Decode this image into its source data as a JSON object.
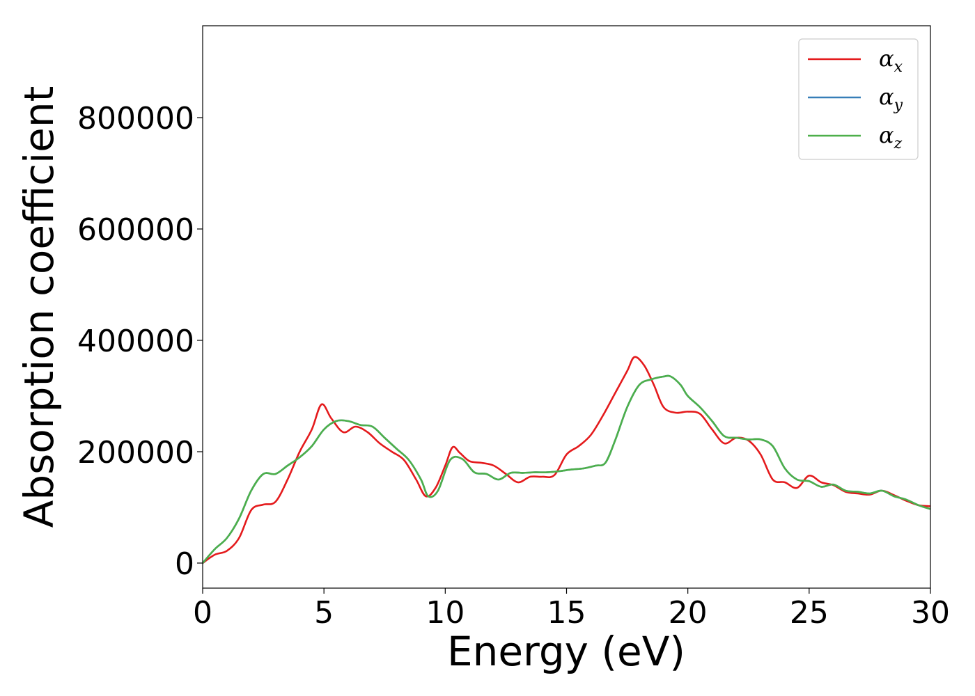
{
  "chart_data": {
    "type": "line",
    "xlabel": "Energy (eV)",
    "ylabel": "Absorption coefficient",
    "xlim": [
      0,
      30
    ],
    "ylim": [
      -45000,
      965000
    ],
    "xticks": [
      0,
      5,
      10,
      15,
      20,
      25,
      30
    ],
    "yticks": [
      0,
      200000,
      400000,
      600000,
      800000
    ],
    "xtick_labels": [
      "0",
      "5",
      "10",
      "15",
      "20",
      "25",
      "30"
    ],
    "ytick_labels": [
      "0",
      "200000",
      "400000",
      "600000",
      "800000"
    ],
    "grid": false,
    "legend_position": "top-right",
    "series": [
      {
        "name": "αx",
        "name_base": "α",
        "name_sub": "x",
        "color": "#e41a1c",
        "x": [
          0,
          0.5,
          1,
          1.5,
          2,
          2.5,
          3,
          3.5,
          4,
          4.5,
          4.9,
          5.3,
          5.8,
          6.3,
          6.8,
          7.3,
          7.8,
          8.3,
          8.8,
          9.2,
          9.6,
          10,
          10.3,
          10.6,
          11,
          11.5,
          12,
          12.5,
          13,
          13.5,
          14,
          14.5,
          15,
          15.5,
          16,
          16.5,
          17,
          17.5,
          17.8,
          18.2,
          18.6,
          19,
          19.5,
          20,
          20.5,
          21,
          21.5,
          22,
          22.5,
          23,
          23.5,
          24,
          24.5,
          25,
          25.5,
          26,
          26.5,
          27,
          27.5,
          28,
          28.5,
          29,
          29.5,
          30
        ],
        "y": [
          0,
          15000,
          22000,
          45000,
          95000,
          105000,
          110000,
          150000,
          200000,
          240000,
          285000,
          260000,
          235000,
          245000,
          235000,
          215000,
          200000,
          185000,
          150000,
          120000,
          135000,
          175000,
          208000,
          198000,
          183000,
          180000,
          175000,
          160000,
          145000,
          155000,
          155000,
          158000,
          195000,
          210000,
          230000,
          265000,
          305000,
          345000,
          370000,
          355000,
          320000,
          280000,
          270000,
          272000,
          268000,
          240000,
          215000,
          225000,
          220000,
          195000,
          150000,
          145000,
          135000,
          157000,
          145000,
          140000,
          128000,
          125000,
          123000,
          130000,
          122000,
          112000,
          104000,
          102000
        ]
      },
      {
        "name": "αy",
        "name_base": "α",
        "name_sub": "y",
        "color": "#377eb8",
        "x": [
          0,
          0.5,
          1,
          1.5,
          2,
          2.5,
          3,
          3.5,
          4,
          4.5,
          5,
          5.5,
          6,
          6.5,
          7,
          7.5,
          8,
          8.5,
          9,
          9.3,
          9.7,
          10.2,
          10.7,
          11.2,
          11.7,
          12.2,
          12.7,
          13.2,
          13.7,
          14.2,
          14.7,
          15.2,
          15.7,
          16.2,
          16.6,
          17,
          17.5,
          18,
          18.5,
          19,
          19.3,
          19.7,
          20,
          20.5,
          21,
          21.5,
          22,
          22.5,
          23,
          23.5,
          24,
          24.5,
          25,
          25.5,
          26,
          26.5,
          27,
          27.5,
          28,
          28.5,
          29,
          29.5,
          30
        ],
        "y": [
          0,
          25000,
          45000,
          80000,
          130000,
          160000,
          160000,
          175000,
          190000,
          210000,
          240000,
          255000,
          255000,
          248000,
          245000,
          225000,
          205000,
          185000,
          150000,
          120000,
          130000,
          185000,
          187000,
          163000,
          160000,
          150000,
          162000,
          162000,
          163000,
          163000,
          165000,
          168000,
          170000,
          175000,
          180000,
          220000,
          280000,
          320000,
          330000,
          335000,
          335000,
          320000,
          300000,
          280000,
          255000,
          228000,
          225000,
          222000,
          222000,
          210000,
          170000,
          150000,
          147000,
          137000,
          141000,
          130000,
          128000,
          125000,
          130000,
          120000,
          114000,
          104000,
          97000
        ]
      },
      {
        "name": "αz",
        "name_base": "α",
        "name_sub": "z",
        "color": "#4daf4a",
        "x": [
          0,
          0.5,
          1,
          1.5,
          2,
          2.5,
          3,
          3.5,
          4,
          4.5,
          5,
          5.5,
          6,
          6.5,
          7,
          7.5,
          8,
          8.5,
          9,
          9.3,
          9.7,
          10.2,
          10.7,
          11.2,
          11.7,
          12.2,
          12.7,
          13.2,
          13.7,
          14.2,
          14.7,
          15.2,
          15.7,
          16.2,
          16.6,
          17,
          17.5,
          18,
          18.5,
          19,
          19.3,
          19.7,
          20,
          20.5,
          21,
          21.5,
          22,
          22.5,
          23,
          23.5,
          24,
          24.5,
          25,
          25.5,
          26,
          26.5,
          27,
          27.5,
          28,
          28.5,
          29,
          29.5,
          30
        ],
        "y": [
          0,
          25000,
          45000,
          80000,
          130000,
          160000,
          160000,
          175000,
          190000,
          210000,
          240000,
          255000,
          255000,
          248000,
          245000,
          225000,
          205000,
          185000,
          150000,
          120000,
          130000,
          185000,
          187000,
          163000,
          160000,
          150000,
          162000,
          162000,
          163000,
          163000,
          165000,
          168000,
          170000,
          175000,
          180000,
          220000,
          280000,
          320000,
          330000,
          335000,
          335000,
          320000,
          300000,
          280000,
          255000,
          228000,
          225000,
          222000,
          222000,
          210000,
          170000,
          150000,
          147000,
          137000,
          141000,
          130000,
          128000,
          125000,
          130000,
          120000,
          114000,
          104000,
          97000
        ]
      }
    ]
  }
}
